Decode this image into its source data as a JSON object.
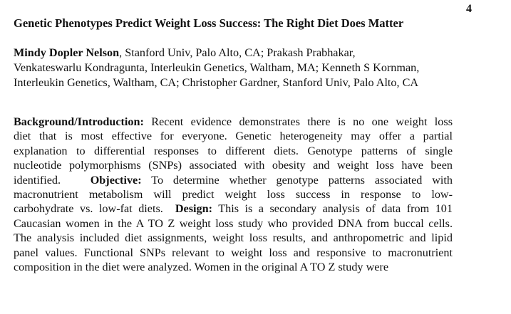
{
  "page_number": "4",
  "title": "Genetic Phenotypes Predict Weight Loss Success: The Right Diet Does Matter",
  "authors": {
    "first_author": "Mindy Dopler Nelson",
    "line1_rest": ", Stanford Univ, Palo Alto, CA; Prakash Prabhakar,",
    "line2": "Venkateswarlu Kondragunta, Interleukin Genetics, Waltham, MA; Kenneth S Kornman,",
    "line3": "Interleukin Genetics, Waltham, CA; Christopher Gardner, Stanford Univ, Palo Alto, CA"
  },
  "abstract": {
    "background_label": "Background/Introduction:",
    "l1_rest": " Recent evidence demonstrates there is no one weight loss",
    "l2": "diet that is most effective for everyone. Genetic heterogeneity may offer a partial",
    "l3": "explanation to differential responses to different diets. Genotype patterns of single",
    "l4": "nucleotide polymorphisms (SNPs) associated with obesity and weight loss have been",
    "l5_start": "identified.",
    "objective_label": "Objective:",
    "l5_rest": " To determine whether genotype patterns associated with",
    "l6": "macronutrient metabolism will predict weight loss success in response to low-",
    "l7_start": "carbohydrate vs. low-fat diets.",
    "design_label": "Design:",
    "l7_rest": " This is a secondary analysis of data from 101",
    "l8": "Caucasian women in the A TO Z weight loss study who provided DNA from buccal cells.",
    "l9": "The analysis included diet assignments, weight loss results, and anthropometric and lipid",
    "l10": "panel values. Functional SNPs relevant to weight loss and responsive to macronutrient",
    "l11": "composition in the diet were analyzed. Women in the original A TO Z study were"
  }
}
